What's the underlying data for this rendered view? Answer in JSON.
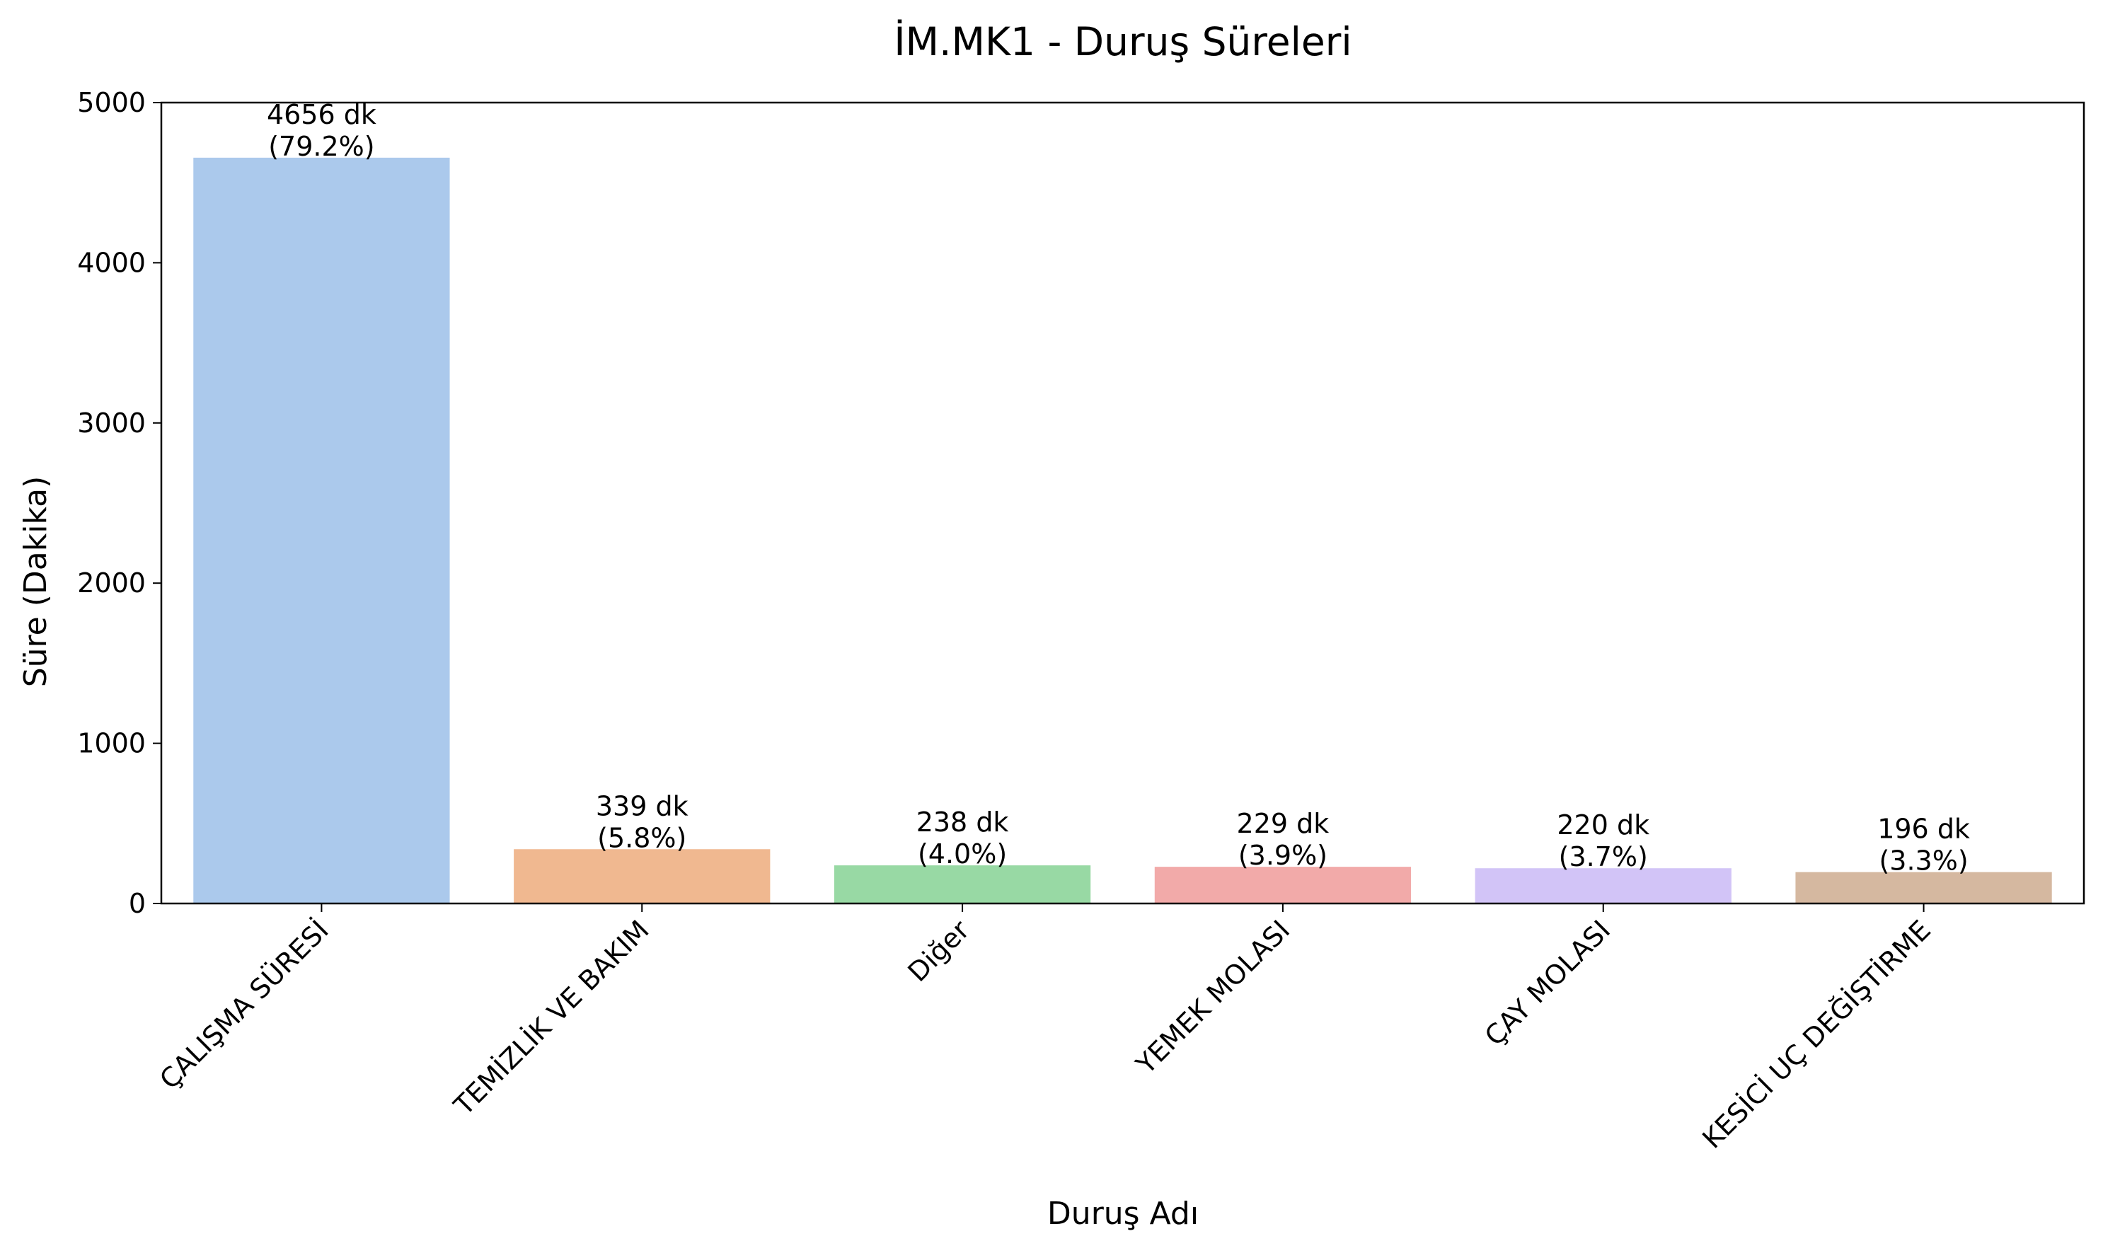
{
  "chart_data": {
    "type": "bar",
    "title": "İM.MK1 - Duruş Süreleri",
    "xlabel": "Duruş Adı",
    "ylabel": "Süre (Dakika)",
    "ylim": [
      0,
      5000
    ],
    "yticks": [
      0,
      1000,
      2000,
      3000,
      4000,
      5000
    ],
    "grid": false,
    "categories": [
      "ÇALIŞMA SÜRESİ",
      "TEMİZLİK VE BAKIM",
      "Diğer",
      "YEMEK MOLASI",
      "ÇAY MOLASI",
      "KESİCİ UÇ DEĞİŞTİRME"
    ],
    "values": [
      4656,
      339,
      238,
      229,
      220,
      196
    ],
    "value_labels": [
      "4656 dk",
      "339 dk",
      "238 dk",
      "229 dk",
      "220 dk",
      "196 dk"
    ],
    "percent_labels": [
      "(79.2%)",
      "(5.8%)",
      "(4.0%)",
      "(3.9%)",
      "(3.7%)",
      "(3.3%)"
    ],
    "colors": [
      "#abc9ec",
      "#f0b890",
      "#98d9a4",
      "#f2aaa9",
      "#d2c4f7",
      "#d5b8a0"
    ]
  }
}
